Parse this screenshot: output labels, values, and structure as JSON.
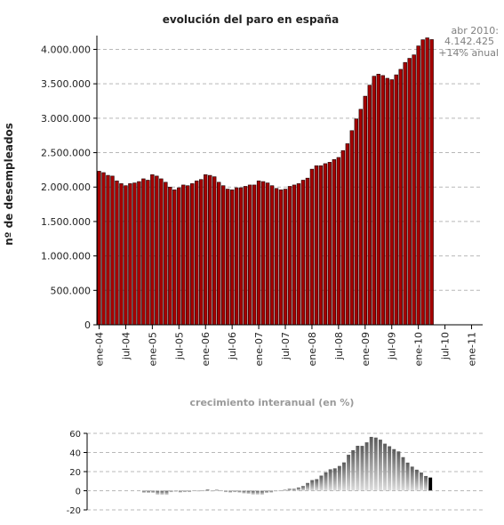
{
  "chart_data": [
    {
      "type": "bar",
      "title": "evolución del paro en españa",
      "ylabel": "nº de desempleados",
      "ylim": [
        0,
        4200000
      ],
      "yticks": [
        0,
        500000,
        1000000,
        1500000,
        2000000,
        2500000,
        3000000,
        3500000,
        4000000
      ],
      "ytick_labels": [
        "0",
        "500.000",
        "1.000.000",
        "1.500.000",
        "2.000.000",
        "2.500.000",
        "3.000.000",
        "3.500.000",
        "4.000.000"
      ],
      "xtick_labels": [
        "ene-04",
        "jul-04",
        "ene-05",
        "jul-05",
        "ene-06",
        "jul-06",
        "ene-07",
        "jul-07",
        "ene-08",
        "jul-08",
        "ene-09",
        "jul-09",
        "ene-10",
        "jul-10",
        "ene-11"
      ],
      "grid": true,
      "x_start": "2004-01",
      "x_end": "2011-03",
      "bar_color": "#a50000",
      "values": [
        2230000,
        2210000,
        2170000,
        2160000,
        2090000,
        2050000,
        2020000,
        2050000,
        2060000,
        2080000,
        2120000,
        2100000,
        2180000,
        2160000,
        2120000,
        2070000,
        2000000,
        1960000,
        1990000,
        2030000,
        2020000,
        2050000,
        2090000,
        2110000,
        2180000,
        2170000,
        2150000,
        2070000,
        2020000,
        1970000,
        1960000,
        1990000,
        1990000,
        2010000,
        2030000,
        2030000,
        2090000,
        2080000,
        2060000,
        2020000,
        1980000,
        1960000,
        1970000,
        2010000,
        2030000,
        2050000,
        2100000,
        2130000,
        2260000,
        2310000,
        2310000,
        2340000,
        2360000,
        2400000,
        2430000,
        2530000,
        2630000,
        2820000,
        2990000,
        3130000,
        3320000,
        3480000,
        3610000,
        3640000,
        3620000,
        3580000,
        3560000,
        3630000,
        3710000,
        3810000,
        3870000,
        3920000,
        4050000,
        4140000,
        4167000,
        4142425
      ],
      "annotation": {
        "lines": [
          "abr 2010:",
          "4.142.425",
          "+14% anual"
        ],
        "color": "#808080"
      }
    },
    {
      "type": "bar",
      "title": "crecimiento interanual (en %)",
      "ylim": [
        -20,
        60
      ],
      "yticks": [
        -20,
        0,
        20,
        40,
        60
      ],
      "ytick_labels": [
        "-20",
        "0",
        "20",
        "40",
        "60"
      ],
      "grid": true,
      "x_start": "2004-01",
      "x_end": "2011-03",
      "first_value_month": "2005-01",
      "last_bar_color": "#000000",
      "values": [
        -2.2,
        -2.3,
        -2.3,
        -4.2,
        -4.3,
        -4.4,
        -1.5,
        -1.0,
        -1.9,
        -1.4,
        -1.4,
        0.5,
        0.0,
        0.5,
        1.4,
        0.0,
        1.0,
        0.5,
        -1.5,
        -2.0,
        -1.5,
        -2.0,
        -2.9,
        -3.3,
        -4.1,
        -4.1,
        -4.2,
        -2.4,
        -2.0,
        -0.5,
        0.5,
        1.0,
        2.0,
        2.0,
        3.4,
        4.9,
        8.1,
        11.1,
        12.1,
        15.8,
        19.2,
        22.4,
        23.4,
        25.9,
        29.6,
        37.6,
        42.4,
        47.0,
        46.9,
        50.6,
        56.3,
        55.6,
        53.4,
        49.2,
        46.5,
        43.5,
        41.1,
        35.1,
        29.4,
        25.2,
        22.0,
        19.0,
        15.4,
        13.8
      ]
    }
  ]
}
